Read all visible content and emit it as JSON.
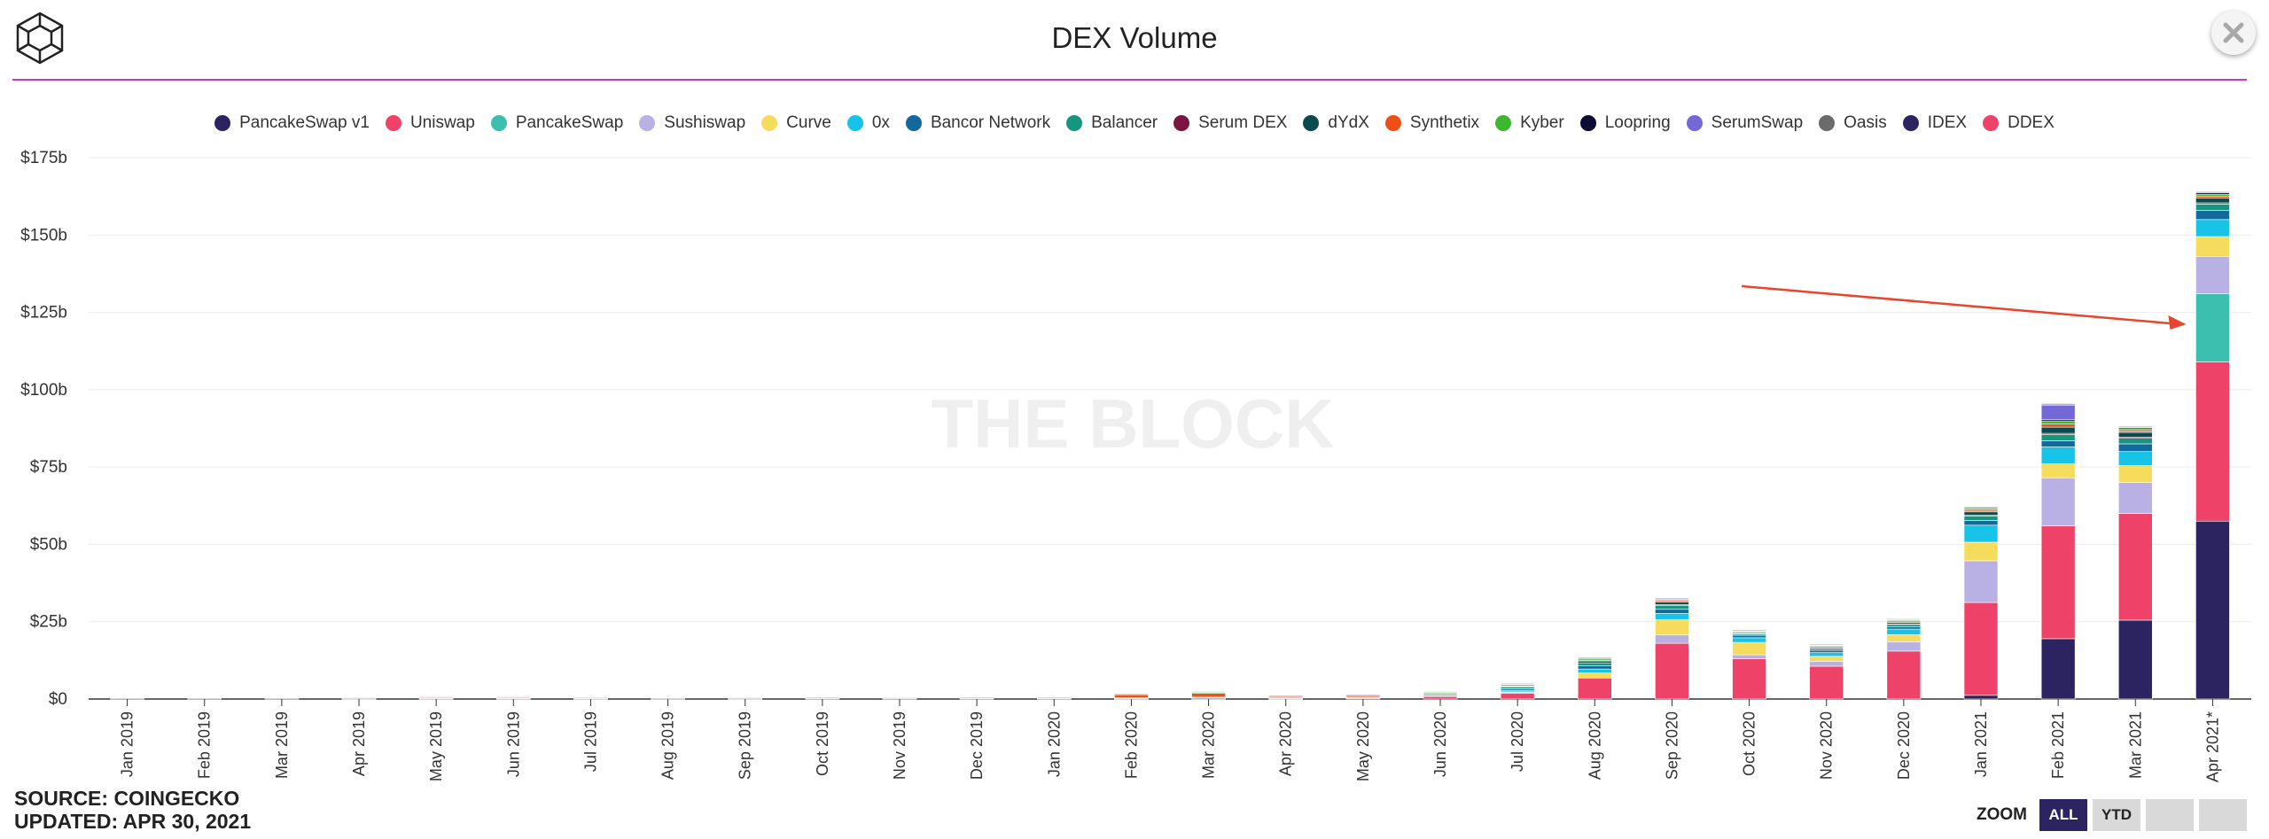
{
  "header": {
    "title": "DEX Volume"
  },
  "footer": {
    "source": "SOURCE: COINGECKO",
    "updated": "UPDATED: APR 30, 2021"
  },
  "zoom": {
    "label": "ZOOM",
    "buttons": [
      "ALL",
      "YTD",
      "",
      ""
    ],
    "active": "ALL"
  },
  "watermark": "THE BLOCK",
  "colors": {
    "accent_rule": "#c13bd0",
    "annotation_arrow": "#e8452c"
  },
  "chart_data": {
    "type": "bar",
    "stacked": true,
    "title": "DEX Volume",
    "xlabel": "",
    "ylabel": "",
    "ylim": [
      0,
      175
    ],
    "y_unit": "b",
    "y_ticks": [
      "$0",
      "$25b",
      "$50b",
      "$75b",
      "$100b",
      "$125b",
      "$150b",
      "$175b"
    ],
    "grid": true,
    "legend_position": "top",
    "categories": [
      "Jan 2019",
      "Feb 2019",
      "Mar 2019",
      "Apr 2019",
      "May 2019",
      "Jun 2019",
      "Jul 2019",
      "Aug 2019",
      "Sep 2019",
      "Oct 2019",
      "Nov 2019",
      "Dec 2019",
      "Jan 2020",
      "Feb 2020",
      "Mar 2020",
      "Apr 2020",
      "May 2020",
      "Jun 2020",
      "Jul 2020",
      "Aug 2020",
      "Sep 2020",
      "Oct 2020",
      "Nov 2020",
      "Dec 2020",
      "Jan 2021",
      "Feb 2021",
      "Mar 2021",
      "Apr 2021*"
    ],
    "series": [
      {
        "name": "PancakeSwap v1",
        "color": "#2b2460",
        "values": [
          0,
          0,
          0,
          0,
          0,
          0,
          0,
          0,
          0,
          0,
          0,
          0,
          0,
          0,
          0,
          0,
          0,
          0,
          0,
          0,
          0,
          0,
          0,
          0,
          1.2,
          19.5,
          25.5,
          57.5
        ]
      },
      {
        "name": "Uniswap",
        "color": "#ef4268",
        "values": [
          0,
          0,
          0,
          0,
          0,
          0,
          0,
          0,
          0,
          0,
          0,
          0,
          0,
          0,
          0,
          0.1,
          0.3,
          0.8,
          1.9,
          6.8,
          18.0,
          13.0,
          10.6,
          15.5,
          30.0,
          36.5,
          34.5,
          51.5
        ]
      },
      {
        "name": "PancakeSwap",
        "color": "#3dbfaf",
        "values": [
          0,
          0,
          0,
          0,
          0,
          0,
          0,
          0,
          0,
          0,
          0,
          0,
          0,
          0,
          0,
          0,
          0,
          0,
          0,
          0,
          0,
          0,
          0,
          0,
          0,
          0,
          0,
          22.0
        ]
      },
      {
        "name": "Sushiswap",
        "color": "#b9b1e3",
        "values": [
          0,
          0,
          0,
          0,
          0,
          0,
          0,
          0,
          0,
          0,
          0,
          0,
          0,
          0,
          0,
          0,
          0,
          0,
          0,
          0,
          2.7,
          1.3,
          1.6,
          3.0,
          13.5,
          15.5,
          10.0,
          12.0
        ]
      },
      {
        "name": "Curve",
        "color": "#f6dc5c",
        "values": [
          0,
          0,
          0,
          0,
          0,
          0,
          0,
          0,
          0,
          0,
          0,
          0,
          0,
          0,
          0,
          0,
          0,
          0,
          0.4,
          1.6,
          5.0,
          4.0,
          1.6,
          2.3,
          6.0,
          4.5,
          5.5,
          6.5
        ]
      },
      {
        "name": "0x",
        "color": "#17c3e6",
        "values": [
          0,
          0,
          0,
          0,
          0,
          0,
          0,
          0,
          0,
          0,
          0,
          0,
          0,
          0.1,
          0.1,
          0.1,
          0.1,
          0.2,
          0.5,
          1.3,
          2.0,
          1.5,
          1.2,
          1.8,
          5.5,
          5.5,
          4.5,
          5.5
        ]
      },
      {
        "name": "Bancor Network",
        "color": "#12699c",
        "values": [
          0,
          0,
          0,
          0,
          0,
          0,
          0,
          0,
          0,
          0,
          0,
          0,
          0,
          0.2,
          0.3,
          0.1,
          0.1,
          0.3,
          0.5,
          1.0,
          1.3,
          0.8,
          0.7,
          0.8,
          1.5,
          2.0,
          2.5,
          3.0
        ]
      },
      {
        "name": "Balancer",
        "color": "#16957f",
        "values": [
          0,
          0,
          0,
          0,
          0,
          0,
          0,
          0,
          0,
          0,
          0,
          0,
          0,
          0,
          0,
          0,
          0,
          0,
          0.6,
          1.0,
          1.3,
          0.5,
          0.6,
          0.8,
          1.5,
          2.0,
          1.8,
          2.0
        ]
      },
      {
        "name": "Serum DEX",
        "color": "#7d1541",
        "values": [
          0,
          0,
          0,
          0,
          0,
          0,
          0,
          0,
          0,
          0,
          0,
          0,
          0,
          0,
          0,
          0,
          0,
          0,
          0,
          0,
          0.2,
          0.1,
          0.1,
          0.1,
          0.3,
          0.4,
          0.4,
          0.4
        ]
      },
      {
        "name": "dYdX",
        "color": "#0b4a4e",
        "values": [
          0,
          0,
          0,
          0,
          0,
          0,
          0,
          0,
          0,
          0,
          0,
          0,
          0,
          0.1,
          0.2,
          0.1,
          0.1,
          0.2,
          0.2,
          0.6,
          0.8,
          0.3,
          0.4,
          0.5,
          1.0,
          2.0,
          1.5,
          1.5
        ]
      },
      {
        "name": "Synthetix",
        "color": "#f04e14",
        "values": [
          0,
          0,
          0,
          0,
          0,
          0,
          0,
          0,
          0,
          0,
          0,
          0.2,
          0.2,
          1.0,
          1.2,
          0.4,
          0.5,
          0.3,
          0.2,
          0.3,
          0.5,
          0.3,
          0.3,
          0.4,
          0.5,
          1.0,
          0.5,
          0.6
        ]
      },
      {
        "name": "Kyber",
        "color": "#3db72f",
        "values": [
          0,
          0,
          0,
          0.1,
          0.1,
          0.1,
          0.1,
          0,
          0.1,
          0.2,
          0.2,
          0.1,
          0.1,
          0.2,
          0.3,
          0.2,
          0.2,
          0.3,
          0.4,
          0.4,
          0.4,
          0.3,
          0.3,
          0.4,
          0.5,
          1.0,
          0.6,
          0.7
        ]
      },
      {
        "name": "Loopring",
        "color": "#0b0b33",
        "values": [
          0,
          0,
          0,
          0,
          0,
          0,
          0,
          0,
          0,
          0,
          0,
          0,
          0,
          0,
          0,
          0,
          0,
          0,
          0,
          0,
          0.1,
          0.1,
          0.1,
          0.1,
          0.3,
          0.5,
          0.4,
          0.5
        ]
      },
      {
        "name": "SerumSwap",
        "color": "#7468d6",
        "values": [
          0,
          0,
          0,
          0,
          0,
          0,
          0,
          0,
          0,
          0,
          0,
          0,
          0,
          0,
          0,
          0,
          0,
          0,
          0,
          0,
          0,
          0,
          0,
          0,
          0,
          4.5,
          0,
          0
        ]
      },
      {
        "name": "Oasis",
        "color": "#6b6b6b",
        "values": [
          0,
          0,
          0,
          0.1,
          0.2,
          0.2,
          0.2,
          0.1,
          0.1,
          0.1,
          0.1,
          0.1,
          0.1,
          0.1,
          0.2,
          0.1,
          0.1,
          0.2,
          0.2,
          0.3,
          0.2,
          0.1,
          0.1,
          0.1,
          0.2,
          0.3,
          0.2,
          0.2
        ]
      },
      {
        "name": "IDEX",
        "color": "#2b2460",
        "values": [
          0.2,
          0.2,
          0.2,
          0.2,
          0.3,
          0.3,
          0.2,
          0.2,
          0.2,
          0.2,
          0.1,
          0.1,
          0.1,
          0.1,
          0.1,
          0.1,
          0.1,
          0.1,
          0.1,
          0.2,
          0.2,
          0.1,
          0.1,
          0.1,
          0.2,
          0.3,
          0.2,
          0.2
        ]
      },
      {
        "name": "DDEX",
        "color": "#ef4268",
        "values": [
          0,
          0,
          0,
          0,
          0.1,
          0.1,
          0.1,
          0,
          0,
          0,
          0,
          0,
          0,
          0,
          0,
          0,
          0,
          0,
          0,
          0,
          0,
          0,
          0,
          0,
          0,
          0,
          0,
          0
        ]
      }
    ],
    "annotations": [
      {
        "type": "arrow",
        "target": "Apr 2021*"
      }
    ]
  }
}
